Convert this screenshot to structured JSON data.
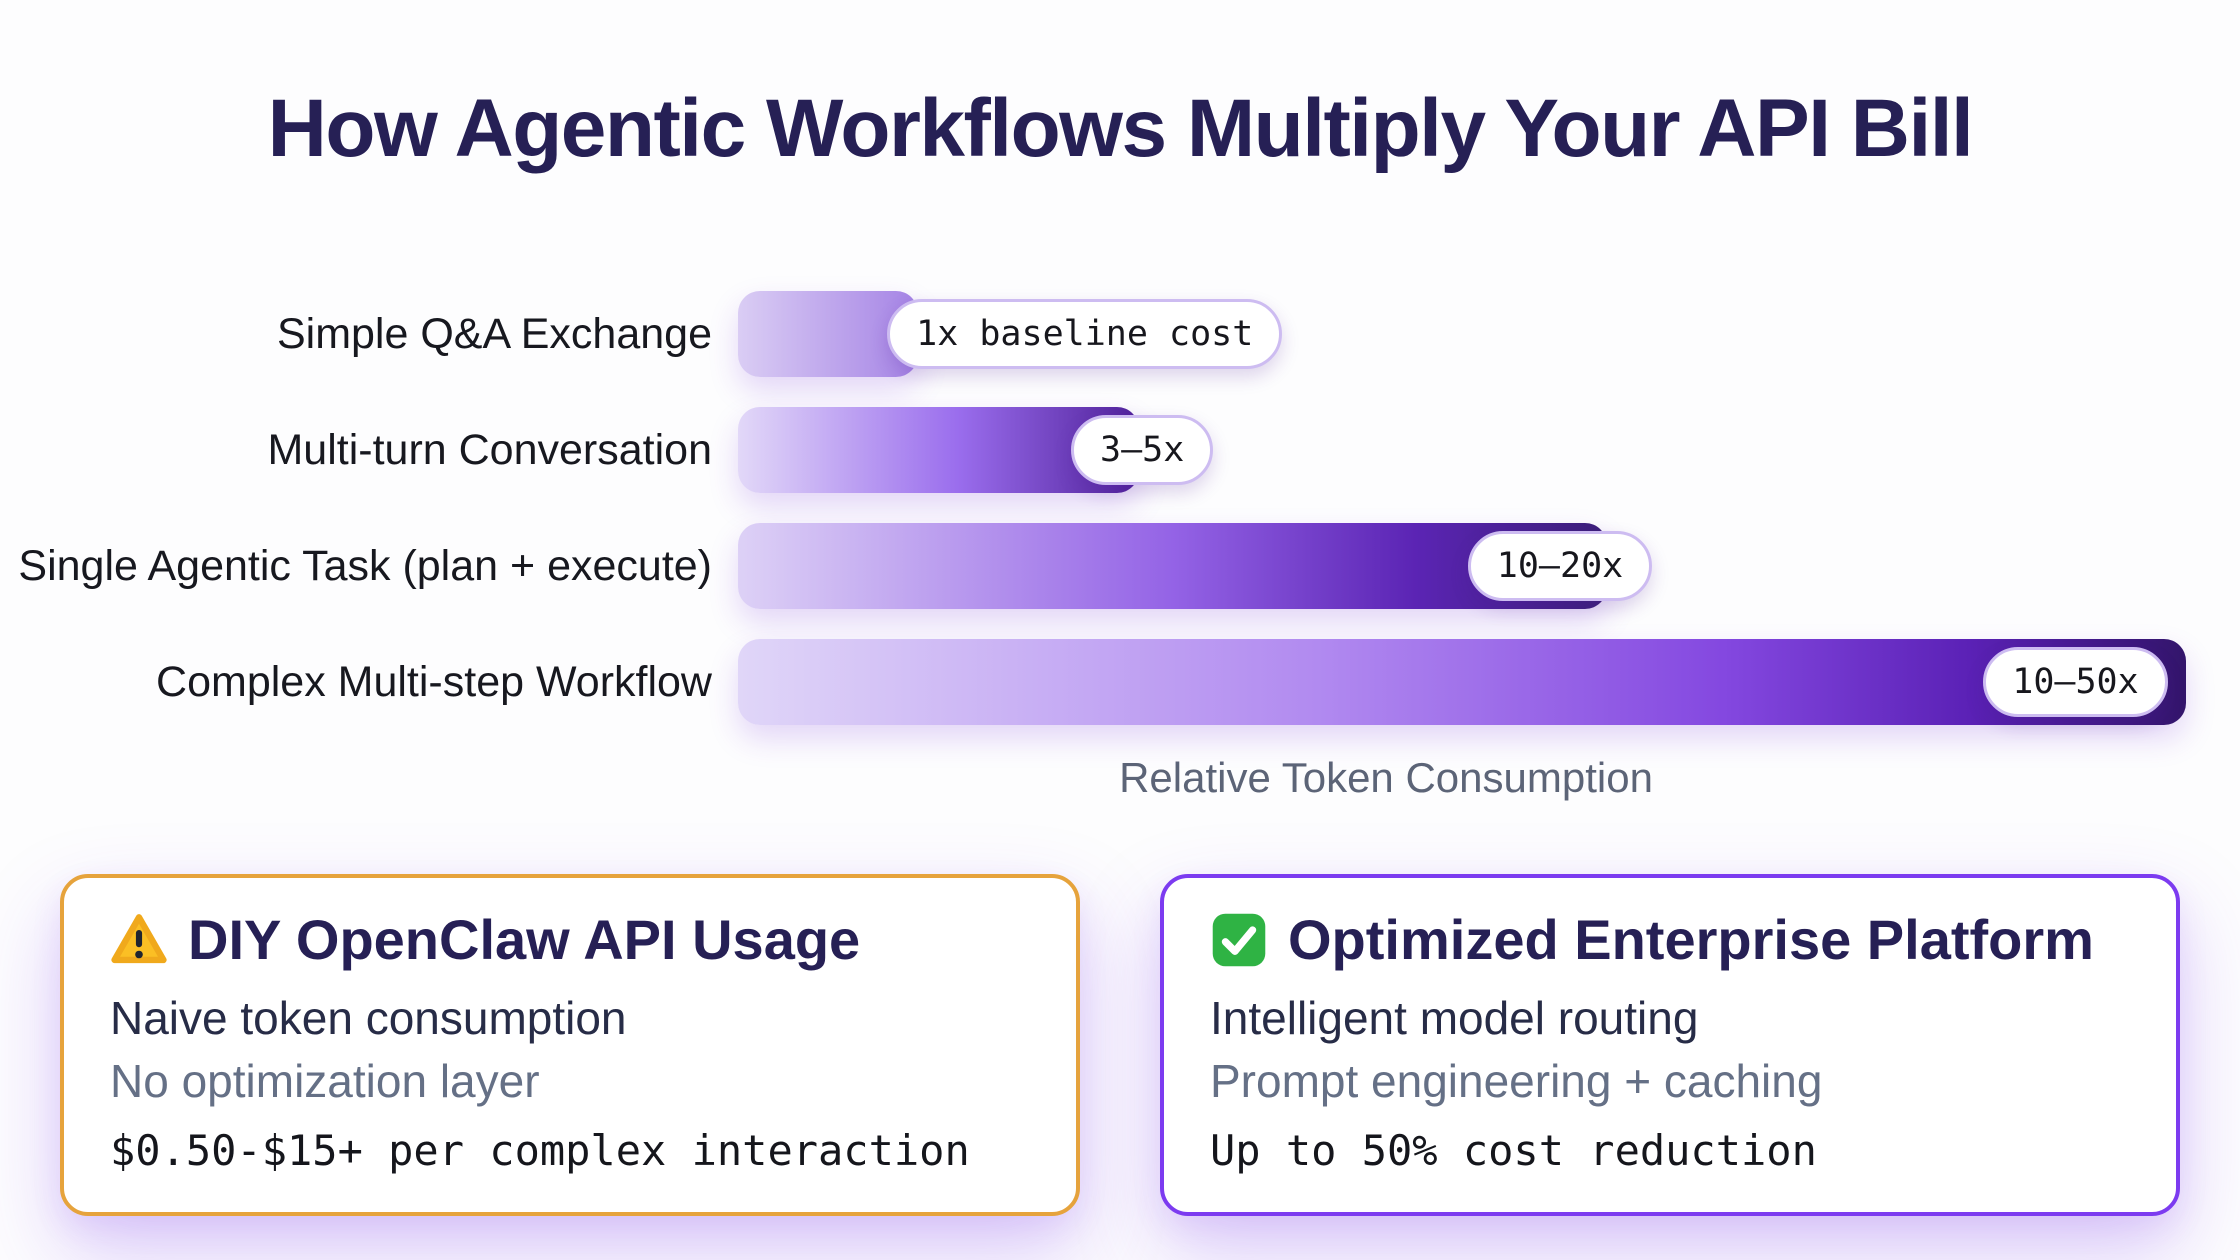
{
  "title": "How Agentic Workflows Multiply Your API Bill",
  "chart_data": {
    "type": "bar",
    "orientation": "horizontal",
    "title": "How Agentic Workflows Multiply Your API Bill",
    "xlabel": "Relative Token Consumption",
    "categories": [
      "Simple Q&A Exchange",
      "Multi-turn Conversation",
      "Single Agentic Task (plan + execute)",
      "Complex Multi-step Workflow"
    ],
    "value_labels": [
      "1x baseline cost",
      "3–5x",
      "10–20x",
      "10–50x"
    ],
    "multiplier_ranges": [
      [
        1,
        1
      ],
      [
        3,
        5
      ],
      [
        10,
        20
      ],
      [
        10,
        50
      ]
    ],
    "bar_length_pct_of_max": [
      12.4,
      27.7,
      60.0,
      100.0
    ],
    "grid": false,
    "legend": "none"
  },
  "chart": {
    "xlabel": "Relative Token Consumption",
    "rows": [
      {
        "label": "Simple Q&A Exchange",
        "badge": "1x baseline cost",
        "bar_pct": 12.4,
        "badge_left_pct": 10.3,
        "gradient": [
          [
            "#dacdf4",
            0
          ],
          [
            "#a583e5",
            100
          ]
        ]
      },
      {
        "label": "Multi-turn Conversation",
        "badge": "3–5x",
        "bar_pct": 27.7,
        "badge_left_pct": 23.0,
        "gradient": [
          [
            "#e2d8f8",
            0
          ],
          [
            "#9a6ded",
            55
          ],
          [
            "#50219a",
            100
          ]
        ]
      },
      {
        "label": "Single Agentic Task (plan + execute)",
        "badge": "10–20x",
        "bar_pct": 60.0,
        "badge_left_pct": 50.4,
        "gradient": [
          [
            "#ddd1f6",
            0
          ],
          [
            "#9463e6",
            50
          ],
          [
            "#5b24b4",
            78
          ],
          [
            "#3b1f78",
            100
          ]
        ]
      },
      {
        "label": "Complex Multi-step Workflow",
        "badge": "10–50x",
        "bar_pct": 100.0,
        "badge_left_pct": 86.0,
        "gradient": [
          [
            "#e0d6f8",
            0
          ],
          [
            "#b18af0",
            40
          ],
          [
            "#8448e0",
            68
          ],
          [
            "#5b21b6",
            85
          ],
          [
            "#33156b",
            100
          ]
        ]
      }
    ]
  },
  "cards": [
    {
      "icon": "warning-icon",
      "title": "DIY OpenClaw API Usage",
      "line1": "Naive token consumption",
      "line2": "No optimization layer",
      "line3": "$0.50-$15+ per complex interaction",
      "border_color": "#e6a33c"
    },
    {
      "icon": "check-icon",
      "title": "Optimized Enterprise Platform",
      "line1": "Intelligent model routing",
      "line2": "Prompt engineering + caching",
      "line3": "Up to 50% cost reduction",
      "border_color": "#7c3bf0"
    }
  ],
  "colors": {
    "title_text": "#262055",
    "label_text": "#17181f",
    "axis_text": "#5c6477",
    "badge_border": "#cdbcf1",
    "warning_fill": "#fbbf24",
    "check_fill": "#2fb344"
  }
}
